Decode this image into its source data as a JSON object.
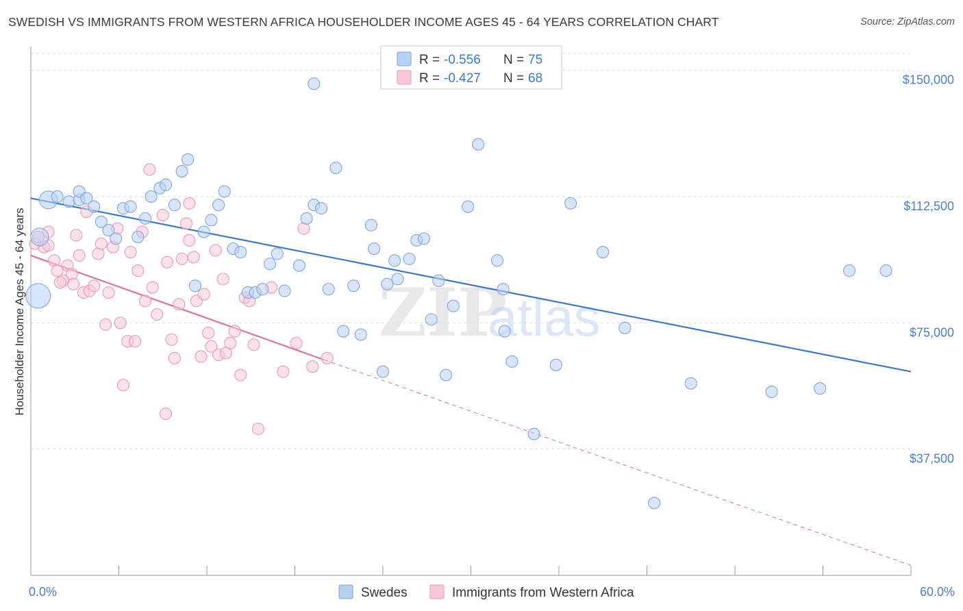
{
  "title": "SWEDISH VS IMMIGRANTS FROM WESTERN AFRICA HOUSEHOLDER INCOME AGES 45 - 64 YEARS CORRELATION CHART",
  "source": "Source: ZipAtlas.com",
  "watermark": {
    "zip": "ZIP",
    "atlas": "atlas"
  },
  "colors": {
    "blue": "#3b78d0",
    "blue_fill": "#b8d0f2",
    "blue_stroke": "#7ea6e0",
    "pink": "#e07099",
    "pink_fill": "#f8c8d8",
    "pink_stroke": "#eb9ab6",
    "grid": "#dddddd",
    "tick_label": "#4a7fd4"
  },
  "legend": {
    "r_label": "R =",
    "n_label": "N =",
    "swedes": {
      "r": "-0.556",
      "n": "75"
    },
    "immigrants": {
      "r": "-0.427",
      "n": "68"
    }
  },
  "chart_data": {
    "type": "scatter",
    "title": "SWEDISH VS IMMIGRANTS FROM WESTERN AFRICA HOUSEHOLDER INCOME AGES 45 - 64 YEARS CORRELATION CHART",
    "xlabel": "",
    "ylabel": "Householder Income Ages 45 - 64 years",
    "xlim": [
      0,
      60
    ],
    "ylim": [
      0,
      155000
    ],
    "x_tick_labels": [
      "0.0%",
      "60.0%"
    ],
    "y_ticks": [
      37500,
      75000,
      112500,
      150000
    ],
    "y_tick_labels": [
      "$37,500",
      "$75,000",
      "$112,500",
      "$150,000"
    ],
    "grid": true,
    "legend_position": "top-center",
    "series": [
      {
        "name": "Swedes",
        "r": -0.556,
        "n": 75,
        "trend": {
          "x": [
            0,
            60
          ],
          "y": [
            112000,
            60500
          ]
        },
        "points": [
          [
            0.5,
            83000
          ],
          [
            0.6,
            100500
          ],
          [
            1.2,
            111500
          ],
          [
            1.8,
            112500
          ],
          [
            2.6,
            111000
          ],
          [
            3.3,
            111500
          ],
          [
            3.3,
            114000
          ],
          [
            3.8,
            112000
          ],
          [
            4.3,
            109500
          ],
          [
            4.8,
            105000
          ],
          [
            5.3,
            102500
          ],
          [
            5.8,
            100000
          ],
          [
            6.3,
            109000
          ],
          [
            6.8,
            109500
          ],
          [
            7.3,
            100500
          ],
          [
            7.8,
            106000
          ],
          [
            8.2,
            112500
          ],
          [
            8.8,
            115000
          ],
          [
            9.2,
            116000
          ],
          [
            9.8,
            110000
          ],
          [
            10.3,
            120000
          ],
          [
            10.7,
            123500
          ],
          [
            11.2,
            86000
          ],
          [
            11.8,
            102000
          ],
          [
            12.3,
            105500
          ],
          [
            12.8,
            110000
          ],
          [
            13.2,
            114000
          ],
          [
            13.8,
            97000
          ],
          [
            14.3,
            96000
          ],
          [
            14.8,
            84000
          ],
          [
            15.3,
            84000
          ],
          [
            15.8,
            85000
          ],
          [
            16.3,
            92500
          ],
          [
            16.8,
            95500
          ],
          [
            17.3,
            84500
          ],
          [
            18.3,
            92000
          ],
          [
            18.8,
            106000
          ],
          [
            19.3,
            110000
          ],
          [
            19.8,
            109000
          ],
          [
            19.3,
            146000
          ],
          [
            20.3,
            85000
          ],
          [
            20.8,
            121000
          ],
          [
            21.3,
            72500
          ],
          [
            22.0,
            86000
          ],
          [
            22.5,
            71500
          ],
          [
            23.2,
            104000
          ],
          [
            23.4,
            97000
          ],
          [
            24.0,
            60500
          ],
          [
            24.3,
            86500
          ],
          [
            24.8,
            93500
          ],
          [
            25.0,
            88000
          ],
          [
            25.8,
            94000
          ],
          [
            26.3,
            99500
          ],
          [
            26.8,
            100000
          ],
          [
            27.3,
            76000
          ],
          [
            27.8,
            87500
          ],
          [
            28.3,
            59500
          ],
          [
            28.8,
            80000
          ],
          [
            29.8,
            109500
          ],
          [
            30.5,
            128000
          ],
          [
            31.8,
            93500
          ],
          [
            32.3,
            72500
          ],
          [
            32.8,
            63500
          ],
          [
            32.2,
            85000
          ],
          [
            34.3,
            42000
          ],
          [
            35.8,
            62500
          ],
          [
            36.8,
            110500
          ],
          [
            39.0,
            96000
          ],
          [
            40.5,
            73500
          ],
          [
            42.5,
            21500
          ],
          [
            45.0,
            57000
          ],
          [
            50.5,
            54500
          ],
          [
            53.8,
            55500
          ],
          [
            55.8,
            90500
          ],
          [
            58.3,
            90500
          ]
        ]
      },
      {
        "name": "Immigrants from Western Africa",
        "r": -0.427,
        "n": 68,
        "trend": {
          "x": [
            0,
            20
          ],
          "y": [
            95000,
            64000
          ]
        },
        "trend_extended": {
          "x": [
            20,
            60
          ],
          "y": [
            64000,
            3000
          ]
        },
        "points": [
          [
            0.3,
            98500
          ],
          [
            0.5,
            100500
          ],
          [
            0.9,
            97500
          ],
          [
            1.2,
            98000
          ],
          [
            1.2,
            102000
          ],
          [
            1.6,
            93500
          ],
          [
            1.8,
            90500
          ],
          [
            2.2,
            87500
          ],
          [
            2.5,
            92000
          ],
          [
            2.8,
            89500
          ],
          [
            2.9,
            86500
          ],
          [
            3.1,
            101000
          ],
          [
            3.3,
            95000
          ],
          [
            3.6,
            84000
          ],
          [
            3.8,
            108000
          ],
          [
            4.0,
            84500
          ],
          [
            4.3,
            86000
          ],
          [
            4.6,
            95500
          ],
          [
            4.8,
            98500
          ],
          [
            5.1,
            74500
          ],
          [
            5.3,
            84000
          ],
          [
            5.6,
            97500
          ],
          [
            5.9,
            103000
          ],
          [
            6.1,
            75000
          ],
          [
            6.3,
            56500
          ],
          [
            6.6,
            69500
          ],
          [
            6.8,
            96000
          ],
          [
            7.1,
            69500
          ],
          [
            7.3,
            90500
          ],
          [
            7.6,
            102000
          ],
          [
            7.8,
            81500
          ],
          [
            8.1,
            120500
          ],
          [
            8.3,
            85500
          ],
          [
            8.6,
            77500
          ],
          [
            9.0,
            107000
          ],
          [
            9.3,
            93000
          ],
          [
            9.6,
            70000
          ],
          [
            9.8,
            64500
          ],
          [
            10.1,
            80500
          ],
          [
            10.3,
            94000
          ],
          [
            10.6,
            104500
          ],
          [
            10.8,
            99500
          ],
          [
            11.1,
            94500
          ],
          [
            11.3,
            81500
          ],
          [
            11.6,
            65000
          ],
          [
            11.8,
            83500
          ],
          [
            12.1,
            72000
          ],
          [
            12.3,
            68000
          ],
          [
            12.6,
            96500
          ],
          [
            12.8,
            65500
          ],
          [
            13.1,
            88000
          ],
          [
            13.3,
            66000
          ],
          [
            13.6,
            69000
          ],
          [
            13.9,
            72500
          ],
          [
            14.3,
            59500
          ],
          [
            14.6,
            82500
          ],
          [
            14.9,
            81500
          ],
          [
            15.2,
            68500
          ],
          [
            15.5,
            43500
          ],
          [
            16.4,
            85500
          ],
          [
            17.2,
            60500
          ],
          [
            18.1,
            69000
          ],
          [
            18.6,
            103000
          ],
          [
            19.2,
            62000
          ],
          [
            20.2,
            64500
          ],
          [
            9.2,
            48000
          ],
          [
            10.8,
            110500
          ],
          [
            2.0,
            87000
          ]
        ]
      }
    ]
  }
}
